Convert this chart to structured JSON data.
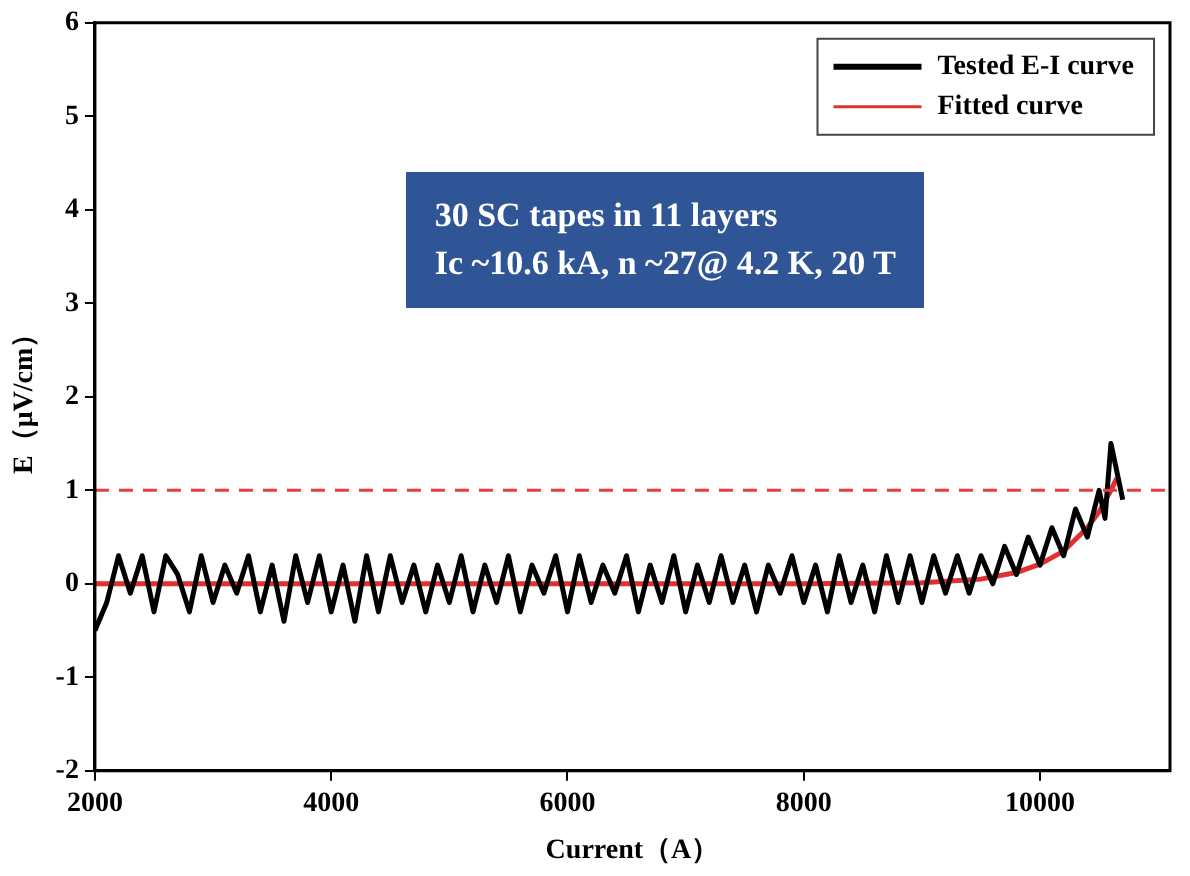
{
  "chart_data": {
    "type": "line",
    "xlabel": "Current（A）",
    "ylabel": "E（μV/cm）",
    "xlim": [
      2000,
      11100
    ],
    "xticks": [
      2000,
      4000,
      6000,
      8000,
      10000
    ],
    "ylim": [
      -2,
      6
    ],
    "yticks": [
      -2,
      -1,
      0,
      1,
      2,
      3,
      4,
      5,
      6
    ],
    "grid": false,
    "legend": "top right",
    "marker": "none",
    "line_style": "solid",
    "series": [
      {
        "name": "Tested E-I curve",
        "color": "#000000",
        "x": [
          2000,
          2100,
          2200,
          2300,
          2400,
          2500,
          2600,
          2700,
          2800,
          2900,
          3000,
          3100,
          3200,
          3300,
          3400,
          3500,
          3600,
          3700,
          3800,
          3900,
          4000,
          4100,
          4200,
          4300,
          4400,
          4500,
          4600,
          4700,
          4800,
          4900,
          5000,
          5100,
          5200,
          5300,
          5400,
          5500,
          5600,
          5700,
          5800,
          5900,
          6000,
          6100,
          6200,
          6300,
          6400,
          6500,
          6600,
          6700,
          6800,
          6900,
          7000,
          7100,
          7200,
          7300,
          7400,
          7500,
          7600,
          7700,
          7800,
          7900,
          8000,
          8100,
          8200,
          8300,
          8400,
          8500,
          8600,
          8700,
          8800,
          8900,
          9000,
          9100,
          9200,
          9300,
          9400,
          9500,
          9600,
          9700,
          9800,
          9900,
          10000,
          10100,
          10200,
          10300,
          10400,
          10500,
          10550,
          10600,
          10650,
          10700
        ],
        "values": [
          -0.5,
          -0.2,
          0.3,
          -0.1,
          0.3,
          -0.3,
          0.3,
          0.1,
          -0.3,
          0.3,
          -0.2,
          0.2,
          -0.1,
          0.3,
          -0.3,
          0.2,
          -0.4,
          0.3,
          -0.2,
          0.3,
          -0.3,
          0.2,
          -0.4,
          0.3,
          -0.3,
          0.3,
          -0.2,
          0.2,
          -0.3,
          0.2,
          -0.2,
          0.3,
          -0.3,
          0.2,
          -0.2,
          0.3,
          -0.3,
          0.2,
          -0.1,
          0.3,
          -0.3,
          0.3,
          -0.2,
          0.2,
          -0.1,
          0.3,
          -0.3,
          0.2,
          -0.2,
          0.3,
          -0.3,
          0.2,
          -0.2,
          0.3,
          -0.2,
          0.2,
          -0.3,
          0.2,
          -0.1,
          0.3,
          -0.2,
          0.2,
          -0.3,
          0.3,
          -0.2,
          0.2,
          -0.3,
          0.3,
          -0.2,
          0.3,
          -0.2,
          0.3,
          -0.1,
          0.3,
          -0.1,
          0.3,
          0.0,
          0.4,
          0.1,
          0.5,
          0.2,
          0.6,
          0.3,
          0.8,
          0.5,
          1.0,
          0.7,
          1.5,
          1.2,
          0.9
        ]
      },
      {
        "name": "Fitted curve",
        "color": "#e03030",
        "x": [
          2000,
          8000,
          9000,
          9500,
          9800,
          10000,
          10200,
          10400,
          10500,
          10600,
          10650
        ],
        "values": [
          0,
          0,
          0.01,
          0.05,
          0.12,
          0.21,
          0.35,
          0.6,
          0.77,
          1.0,
          1.13
        ]
      }
    ],
    "ref_lines": [
      {
        "axis": "y",
        "value": 1,
        "color": "#e04040",
        "line_style": "dashed"
      }
    ],
    "annotations": [
      "30 SC tapes in 11 layers",
      "Ic ~10.6 kA, n ~27@ 4.2 K, 20 T"
    ]
  }
}
